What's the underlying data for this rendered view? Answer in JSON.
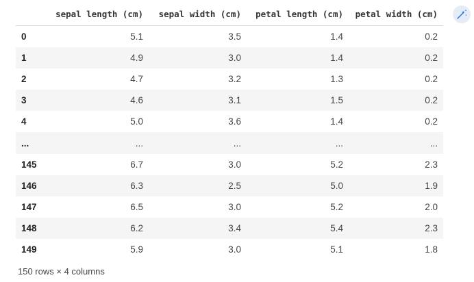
{
  "table": {
    "columns": [
      "",
      "sepal length (cm)",
      "sepal width (cm)",
      "petal length (cm)",
      "petal width (cm)"
    ],
    "rows": [
      [
        "0",
        "5.1",
        "3.5",
        "1.4",
        "0.2"
      ],
      [
        "1",
        "4.9",
        "3.0",
        "1.4",
        "0.2"
      ],
      [
        "2",
        "4.7",
        "3.2",
        "1.3",
        "0.2"
      ],
      [
        "3",
        "4.6",
        "3.1",
        "1.5",
        "0.2"
      ],
      [
        "4",
        "5.0",
        "3.6",
        "1.4",
        "0.2"
      ],
      [
        "...",
        "...",
        "...",
        "...",
        "..."
      ],
      [
        "145",
        "6.7",
        "3.0",
        "5.2",
        "2.3"
      ],
      [
        "146",
        "6.3",
        "2.5",
        "5.0",
        "1.9"
      ],
      [
        "147",
        "6.5",
        "3.0",
        "5.2",
        "2.0"
      ],
      [
        "148",
        "6.2",
        "3.4",
        "5.4",
        "2.3"
      ],
      [
        "149",
        "5.9",
        "3.0",
        "5.1",
        "1.8"
      ]
    ]
  },
  "footer": "150 rows × 4 columns",
  "magic_button": {
    "icon": "magic-wand-icon",
    "color": "#1a73e8",
    "background": "#e6ecf7"
  }
}
